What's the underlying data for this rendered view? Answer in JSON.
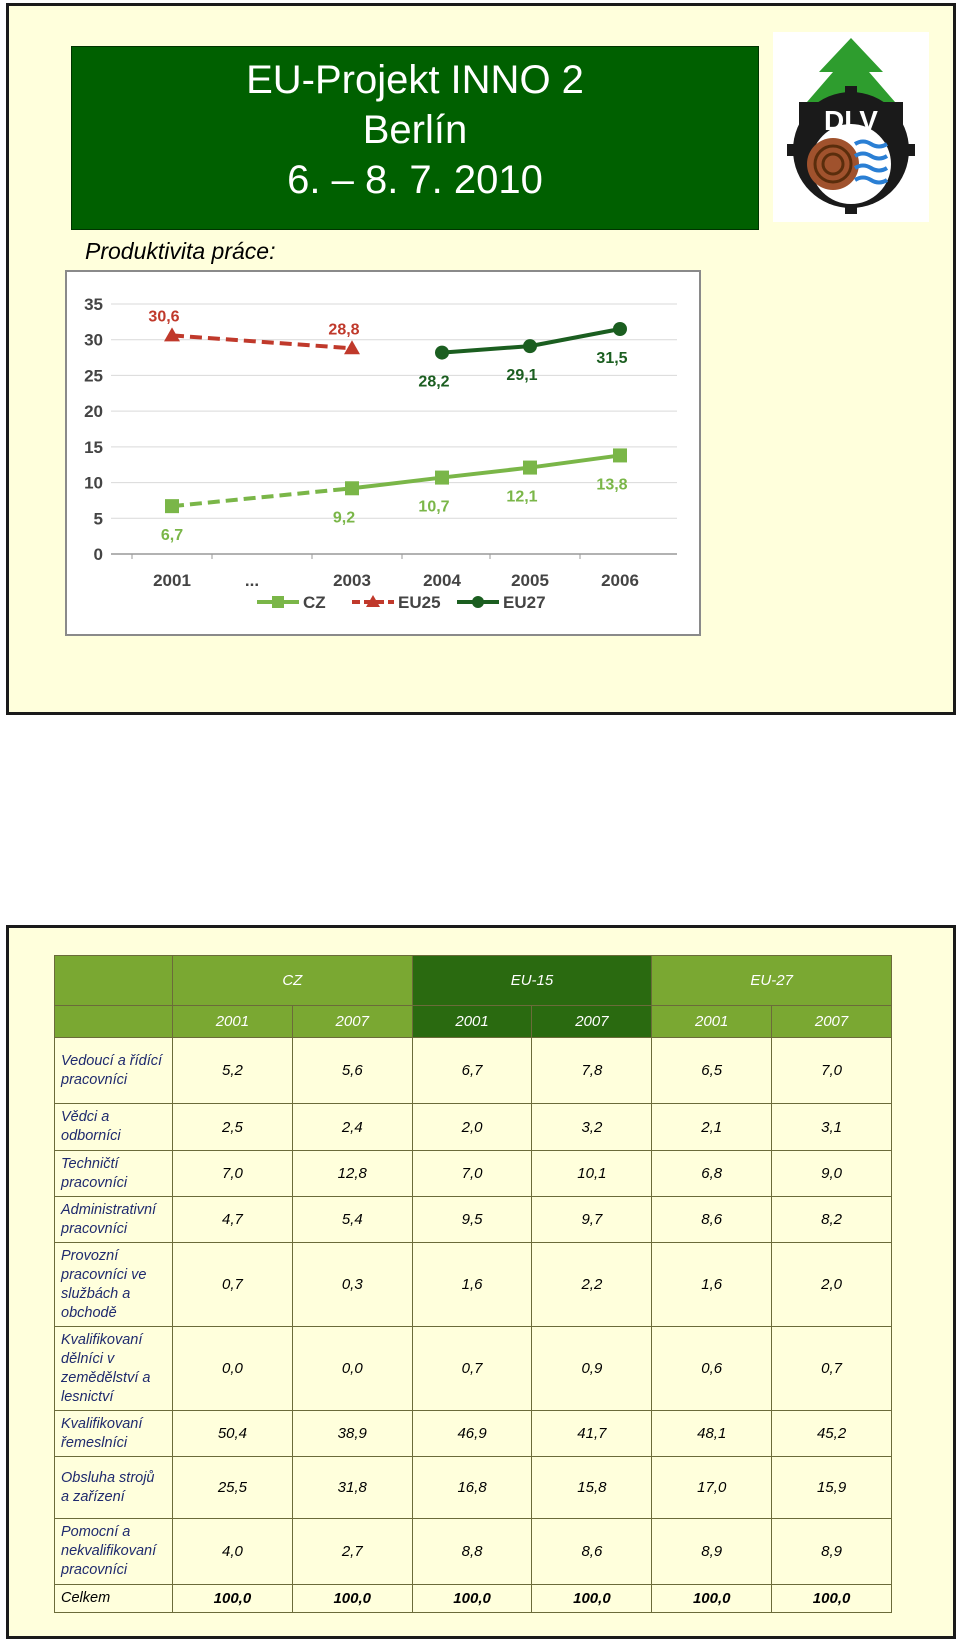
{
  "slide1": {
    "title_lines": [
      "EU-Projekt INNO 2",
      "Berlín",
      "6. – 8. 7. 2010"
    ],
    "logo_text": "DLV",
    "subtitle": "Produktivita práce:"
  },
  "chart_data": {
    "type": "line",
    "categories": [
      "2001",
      "...",
      "2003",
      "2004",
      "2005",
      "2006"
    ],
    "ylim": [
      0,
      35
    ],
    "yticks": [
      "0",
      "5",
      "10",
      "15",
      "20",
      "25",
      "30",
      "35"
    ],
    "grid": true,
    "legend_position": "bottom",
    "series": [
      {
        "name": "CZ",
        "color": "#7ab648",
        "marker": "square",
        "values": [
          6.7,
          null,
          9.2,
          10.7,
          12.1,
          13.8
        ],
        "labels": [
          "6,7",
          "",
          "9,2",
          "10,7",
          "12,1",
          "13,8"
        ],
        "dashed_until_index": 2
      },
      {
        "name": "EU25",
        "color": "#c0392b",
        "marker": "triangle",
        "dashed": true,
        "values": [
          30.6,
          null,
          28.8,
          null,
          null,
          null
        ],
        "labels": [
          "30,6",
          "",
          "28,8",
          "",
          "",
          ""
        ]
      },
      {
        "name": "EU27",
        "color": "#1b5e20",
        "marker": "circle",
        "values": [
          null,
          null,
          null,
          28.2,
          29.1,
          31.5
        ],
        "labels": [
          "",
          "",
          "",
          "28,2",
          "29,1",
          "31,5"
        ]
      }
    ]
  },
  "table": {
    "groups": [
      "CZ",
      "EU-15",
      "EU-27"
    ],
    "years": [
      "2001",
      "2007",
      "2001",
      "2007",
      "2001",
      "2007"
    ],
    "rows": [
      {
        "label": "Vedoucí a řídící pracovníci",
        "values": [
          "5,2",
          "5,6",
          "6,7",
          "7,8",
          "6,5",
          "7,0"
        ]
      },
      {
        "label": "Vědci a odborníci",
        "values": [
          "2,5",
          "2,4",
          "2,0",
          "3,2",
          "2,1",
          "3,1"
        ]
      },
      {
        "label": "Techničtí pracovníci",
        "values": [
          "7,0",
          "12,8",
          "7,0",
          "10,1",
          "6,8",
          "9,0"
        ]
      },
      {
        "label": "Administrativní pracovníci",
        "values": [
          "4,7",
          "5,4",
          "9,5",
          "9,7",
          "8,6",
          "8,2"
        ]
      },
      {
        "label": "Provozní pracovníci ve službách a obchodě",
        "values": [
          "0,7",
          "0,3",
          "1,6",
          "2,2",
          "1,6",
          "2,0"
        ]
      },
      {
        "label": "Kvalifikovaní dělníci v zemědělství a lesnictví",
        "values": [
          "0,0",
          "0,0",
          "0,7",
          "0,9",
          "0,6",
          "0,7"
        ]
      },
      {
        "label": "Kvalifikovaní řemeslníci",
        "values": [
          "50,4",
          "38,9",
          "46,9",
          "41,7",
          "48,1",
          "45,2"
        ]
      },
      {
        "label": "Obsluha strojů a zařízení",
        "values": [
          "25,5",
          "31,8",
          "16,8",
          "15,8",
          "17,0",
          "15,9"
        ]
      },
      {
        "label": "Pomocní a nekvalifikovaní pracovníci",
        "values": [
          "4,0",
          "2,7",
          "8,8",
          "8,6",
          "8,9",
          "8,9"
        ]
      }
    ],
    "total": {
      "label": "Celkem",
      "values": [
        "100,0",
        "100,0",
        "100,0",
        "100,0",
        "100,0",
        "100,0"
      ]
    }
  }
}
